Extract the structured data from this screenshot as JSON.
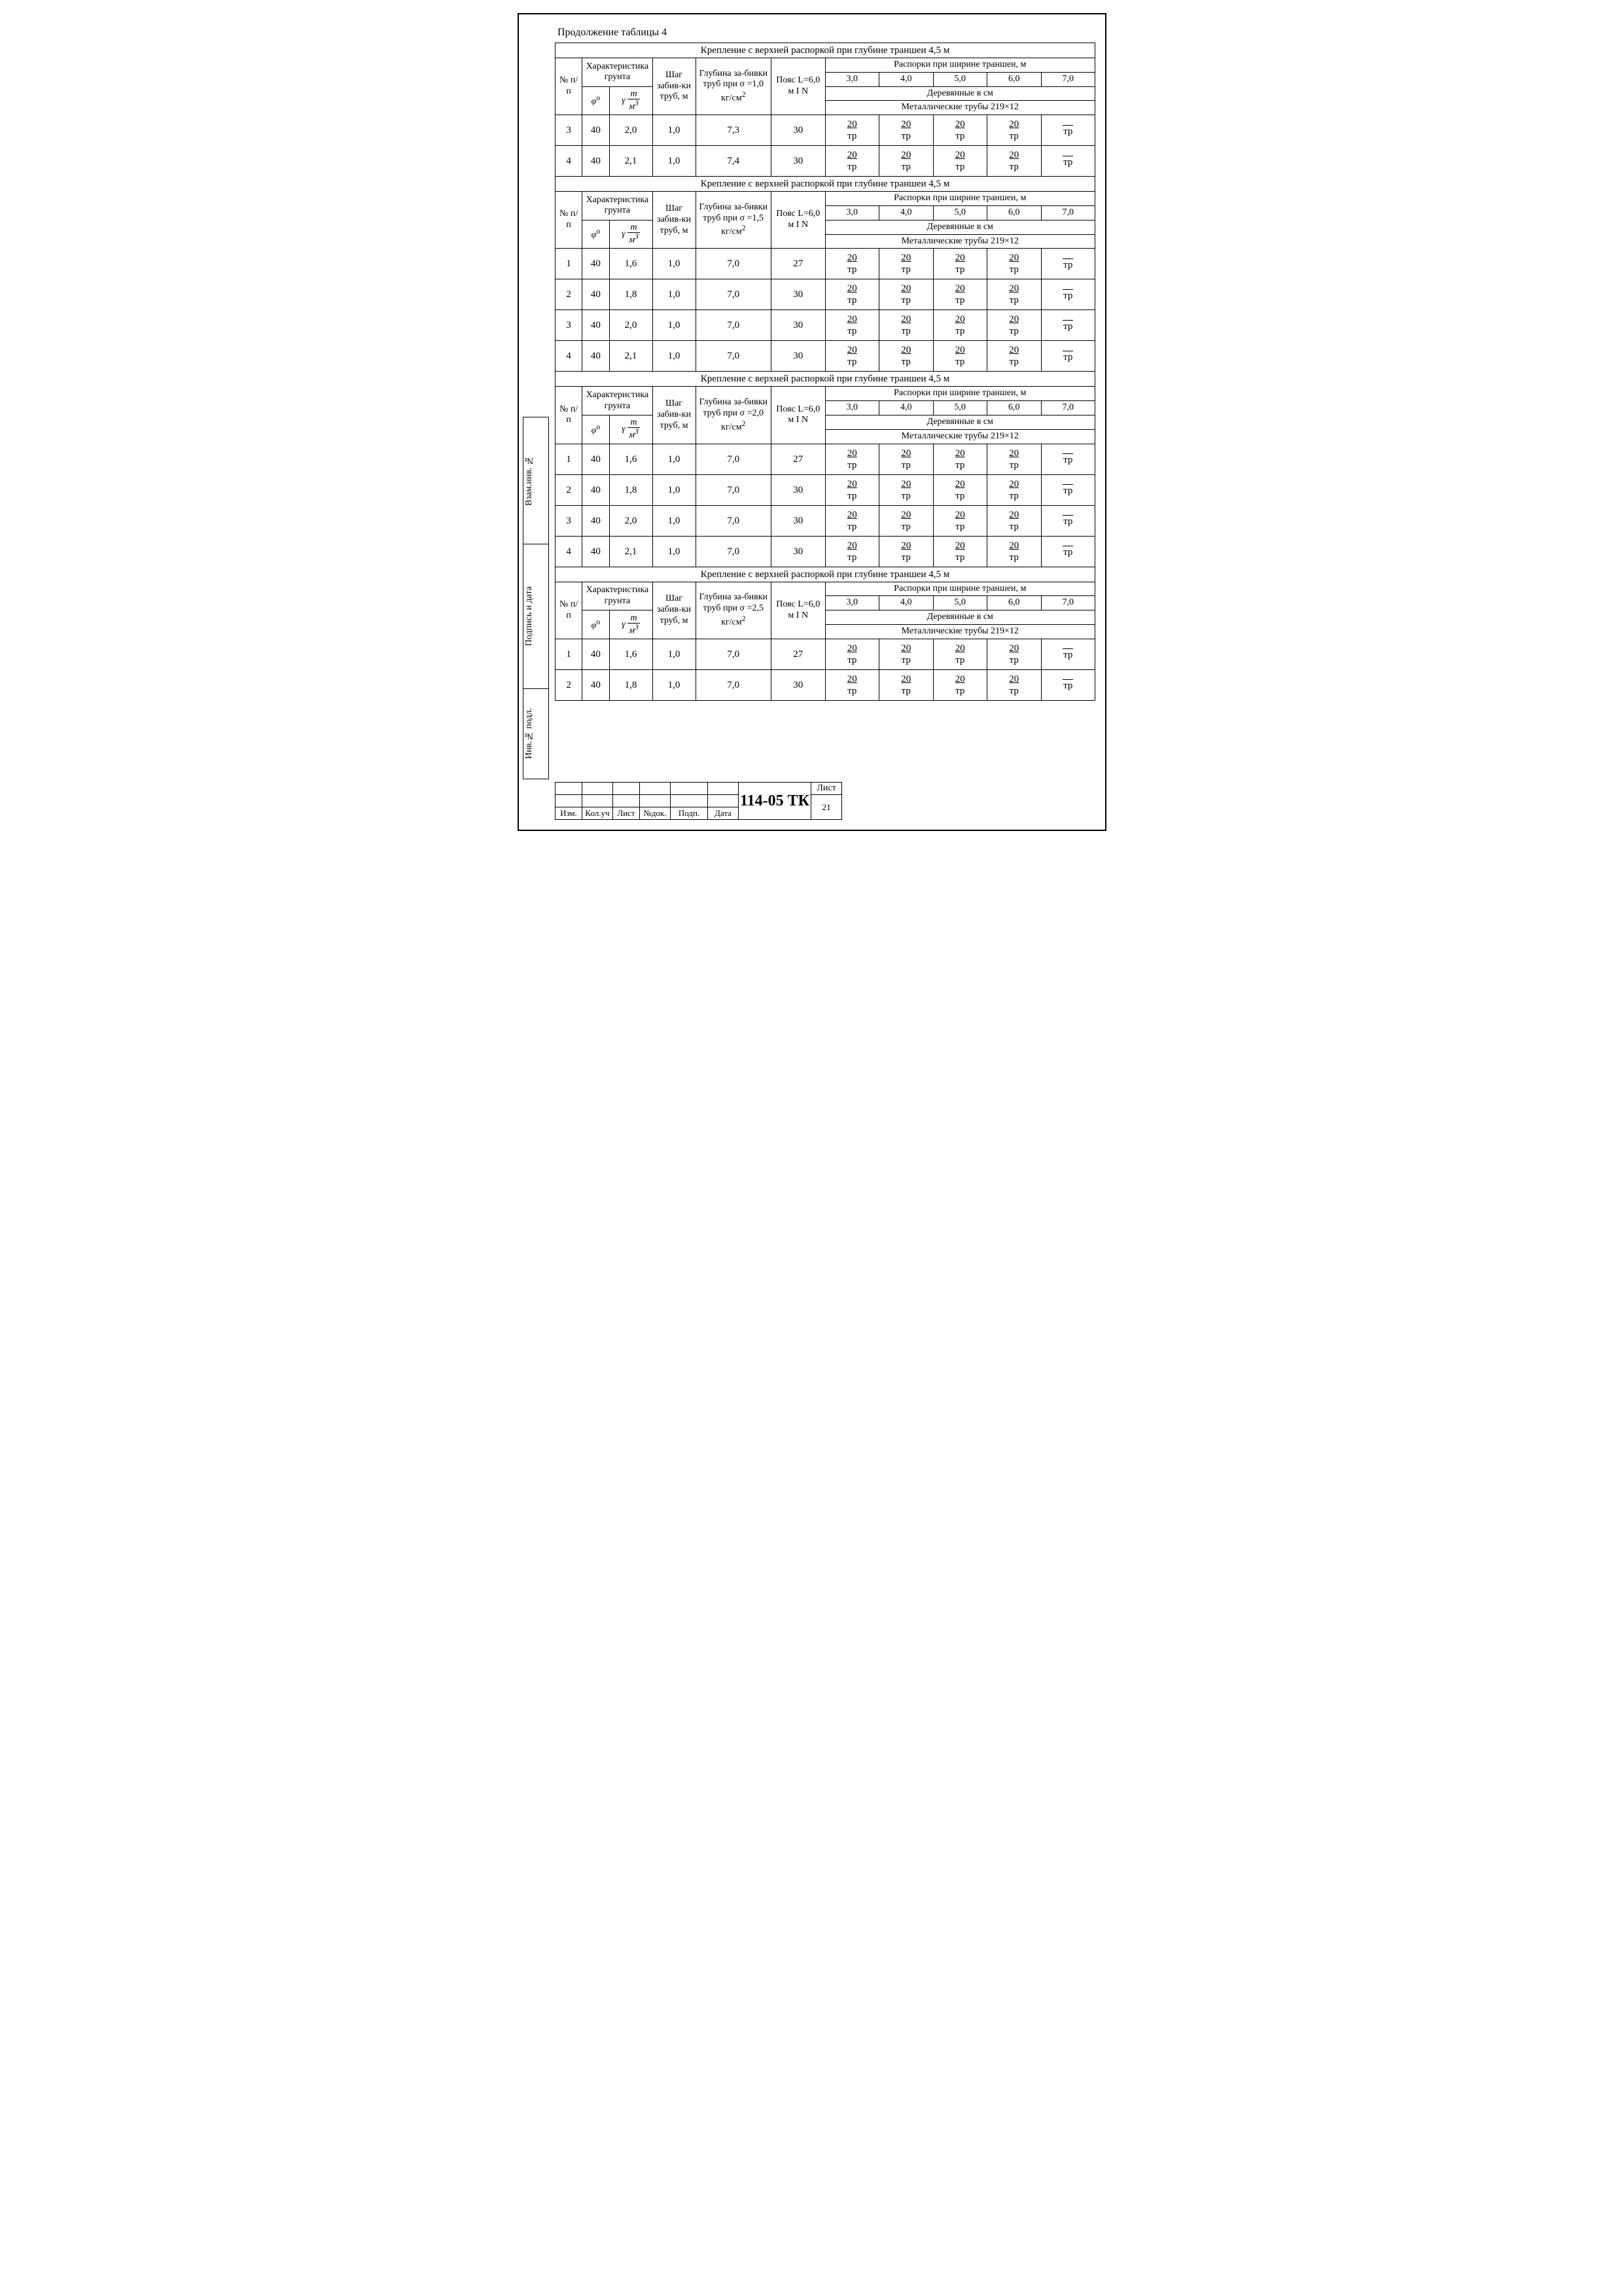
{
  "caption": "Продолжение таблицы 4",
  "header_labels": {
    "npp": "№ п/п",
    "soil": "Характеристика грунта",
    "phi_html": "<i>φ</i><sup>o</sup>",
    "gamma_html": "<i>γ</i> <span class='frac'><span class='n'>m</span><span class='d'>м<sup>3</sup></span></span>",
    "step": "Шаг забив-ки труб, м",
    "depth_prefix": "Глубина за-бивки труб при σ =",
    "depth_unit": " кг/см<sup>2</sup>",
    "belt": "Пояс L=6,0 м I N",
    "struts_hdr": "Распорки при ширине траншеи, м",
    "widths": [
      "3,0",
      "4,0",
      "5,0",
      "6,0",
      "7,0"
    ],
    "wood": "Деревянные в см",
    "metal": "Металлические трубы 219×12"
  },
  "strut_val": "20",
  "strut_tp": "тр",
  "sections": [
    {
      "title": "Крепление с верхней распоркой при глубине траншеи 4,5 м",
      "sigma": "1,0",
      "rows": [
        {
          "n": "3",
          "phi": "40",
          "gamma": "2,0",
          "step": "1,0",
          "depth": "7,3",
          "belt": "30"
        },
        {
          "n": "4",
          "phi": "40",
          "gamma": "2,1",
          "step": "1,0",
          "depth": "7,4",
          "belt": "30"
        }
      ]
    },
    {
      "title": "Крепление с верхней распоркой при глубине траншеи 4,5 м",
      "sigma": "1,5",
      "rows": [
        {
          "n": "1",
          "phi": "40",
          "gamma": "1,6",
          "step": "1,0",
          "depth": "7,0",
          "belt": "27"
        },
        {
          "n": "2",
          "phi": "40",
          "gamma": "1,8",
          "step": "1,0",
          "depth": "7,0",
          "belt": "30"
        },
        {
          "n": "3",
          "phi": "40",
          "gamma": "2,0",
          "step": "1,0",
          "depth": "7,0",
          "belt": "30"
        },
        {
          "n": "4",
          "phi": "40",
          "gamma": "2,1",
          "step": "1,0",
          "depth": "7,0",
          "belt": "30"
        }
      ]
    },
    {
      "title": "Крепление с верхней распоркой при глубине траншеи 4,5 м",
      "sigma": "2,0",
      "rows": [
        {
          "n": "1",
          "phi": "40",
          "gamma": "1,6",
          "step": "1,0",
          "depth": "7,0",
          "belt": "27"
        },
        {
          "n": "2",
          "phi": "40",
          "gamma": "1,8",
          "step": "1,0",
          "depth": "7,0",
          "belt": "30"
        },
        {
          "n": "3",
          "phi": "40",
          "gamma": "2,0",
          "step": "1,0",
          "depth": "7,0",
          "belt": "30"
        },
        {
          "n": "4",
          "phi": "40",
          "gamma": "2,1",
          "step": "1,0",
          "depth": "7,0",
          "belt": "30"
        }
      ]
    },
    {
      "title": "Крепление с верхней распоркой при глубине траншеи 4,5 м",
      "sigma": "2,5",
      "rows": [
        {
          "n": "1",
          "phi": "40",
          "gamma": "1,6",
          "step": "1,0",
          "depth": "7,0",
          "belt": "27"
        },
        {
          "n": "2",
          "phi": "40",
          "gamma": "1,8",
          "step": "1,0",
          "depth": "7,0",
          "belt": "30"
        }
      ]
    }
  ],
  "side": {
    "vzam": "Взам.инв. №",
    "podpis": "Подпись и дата",
    "inv": "Инв.№ подл."
  },
  "title_block": {
    "cols": [
      "Изм.",
      "Кол.уч",
      "Лист",
      "№док.",
      "Подп.",
      "Дата"
    ],
    "docnum": "114-05 ТК",
    "sheet_label": "Лист",
    "sheet_num": "21"
  },
  "col_widths_pct": [
    5,
    5,
    8,
    8,
    14,
    10,
    10,
    10,
    10,
    10,
    10
  ]
}
